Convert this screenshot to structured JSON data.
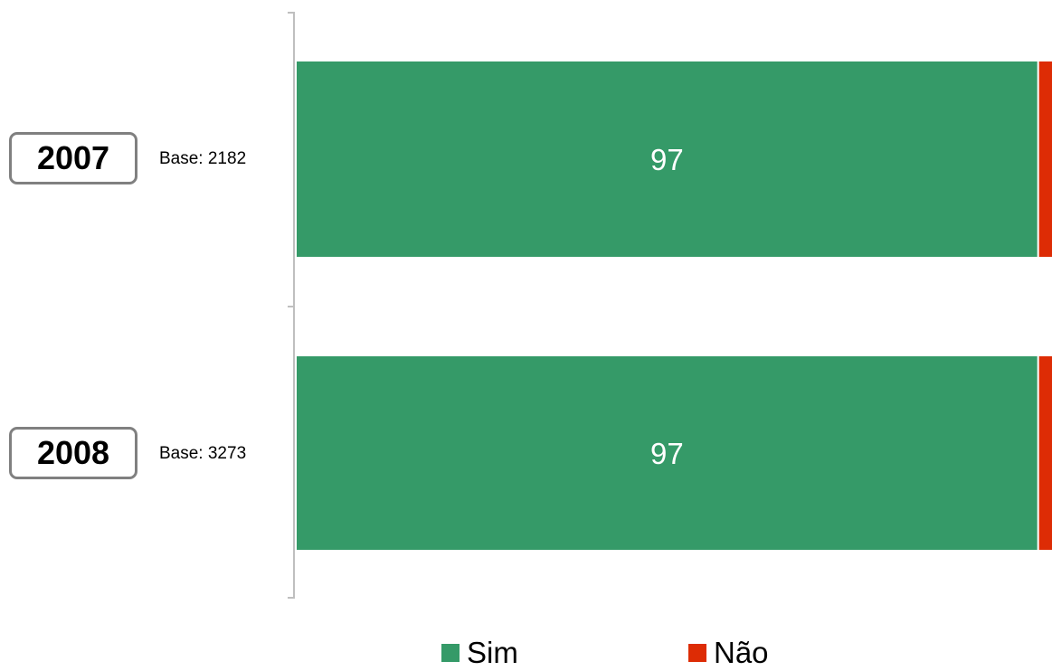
{
  "chart_data": {
    "type": "bar",
    "orientation": "horizontal",
    "stacked": true,
    "categories": [
      "2007",
      "2008"
    ],
    "category_bases": [
      "Base: 2182",
      "Base: 3273"
    ],
    "series": [
      {
        "name": "Sim",
        "values": [
          97,
          97
        ],
        "color": "#359A68"
      },
      {
        "name": "Não",
        "values": [
          3,
          3
        ],
        "color": "#DD2C05"
      }
    ],
    "xlim": [
      0,
      100
    ],
    "grid": false,
    "legend_position": "bottom"
  },
  "colors": {
    "axis": "#BFBFBF",
    "label_text": "#FFFFFF",
    "nao_label_text": "#DD2C05"
  }
}
